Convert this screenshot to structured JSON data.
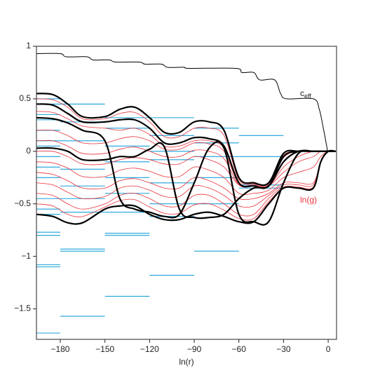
{
  "chart_data": {
    "type": "line",
    "x_label": "ln(r)",
    "annotations": {
      "ceff": {
        "text": "c",
        "sub": "eff"
      },
      "lng": "ln(g)"
    },
    "xlim": [
      -196,
      5.6
    ],
    "ylim": [
      -1.79,
      1
    ],
    "xticks": [
      {
        "value": -180,
        "label": "−180"
      },
      {
        "value": -150,
        "label": "−150"
      },
      {
        "value": -120,
        "label": "−120"
      },
      {
        "value": -90,
        "label": "−90"
      },
      {
        "value": -60,
        "label": "−60"
      },
      {
        "value": -30,
        "label": "−30"
      },
      0
    ],
    "yticks": [
      1,
      0.5,
      0,
      {
        "value": -0.5,
        "label": "−0.5"
      },
      {
        "value": -1,
        "label": "−1"
      },
      {
        "value": -1.5,
        "label": "−1.5"
      }
    ],
    "ceff": {
      "color": "#000000",
      "x": [
        -196,
        -180,
        -176,
        -162,
        -158,
        -147,
        -143,
        -127,
        -123,
        -112,
        -108,
        -97,
        -93,
        -62,
        -58,
        -50,
        -46,
        -36,
        -32,
        -28,
        -10,
        -6,
        -3,
        -1,
        0,
        5
      ],
      "values": [
        0.93,
        0.93,
        0.9,
        0.9,
        0.87,
        0.87,
        0.85,
        0.85,
        0.83,
        0.83,
        0.8,
        0.8,
        0.79,
        0.79,
        0.75,
        0.75,
        0.68,
        0.68,
        0.55,
        0.5,
        0.5,
        0.4,
        0.2,
        0.05,
        0,
        0
      ]
    },
    "x": [
      -196,
      -185,
      -175,
      -165,
      -150,
      -140,
      -130,
      -120,
      -110,
      -100,
      -90,
      -80,
      -70,
      -60,
      -50,
      -40,
      -30,
      -20,
      -10,
      -5,
      0,
      5
    ],
    "series": [
      {
        "color": "#e8323c",
        "width": 0.8,
        "values": [
          0.5,
          0.49,
          0.42,
          0.31,
          0.31,
          0.36,
          0.37,
          0.28,
          0.14,
          0.14,
          0.22,
          0.22,
          0.15,
          -0.27,
          -0.31,
          -0.31,
          -0.04,
          0,
          0,
          0,
          0,
          0
        ]
      },
      {
        "color": "#e8323c",
        "width": 0.8,
        "values": [
          0.38,
          0.37,
          0.31,
          0.24,
          0.22,
          0.2,
          0.22,
          0.16,
          0.05,
          0.05,
          0.1,
          0.1,
          0.03,
          -0.3,
          -0.32,
          -0.32,
          -0.06,
          0,
          0,
          0,
          0,
          0
        ]
      },
      {
        "color": "#e8323c",
        "width": 0.8,
        "values": [
          0.2,
          0.2,
          0.15,
          0.08,
          0.08,
          0.12,
          0.14,
          0.1,
          0.02,
          0.02,
          0.08,
          0.07,
          0,
          -0.31,
          -0.33,
          -0.33,
          -0.1,
          0,
          0,
          0,
          0,
          0
        ]
      },
      {
        "color": "#e8323c",
        "width": 0.8,
        "values": [
          0.1,
          0.1,
          0.05,
          -0.02,
          -0.02,
          0.02,
          0.04,
          0.0,
          -0.05,
          -0.05,
          0.01,
          0,
          -0.07,
          -0.32,
          -0.33,
          -0.33,
          -0.15,
          -0.05,
          0,
          0,
          0,
          0
        ]
      },
      {
        "color": "#e8323c",
        "width": 0.8,
        "values": [
          0,
          0,
          -0.05,
          -0.12,
          -0.12,
          -0.08,
          -0.06,
          -0.08,
          -0.12,
          -0.12,
          -0.05,
          -0.08,
          -0.15,
          -0.32,
          -0.33,
          -0.33,
          -0.2,
          -0.1,
          -0.05,
          0,
          0,
          0
        ]
      },
      {
        "color": "#e8323c",
        "width": 0.8,
        "values": [
          -0.1,
          -0.11,
          -0.16,
          -0.24,
          -0.24,
          -0.18,
          -0.16,
          -0.19,
          -0.24,
          -0.24,
          -0.15,
          -0.18,
          -0.25,
          -0.4,
          -0.4,
          -0.37,
          -0.25,
          -0.2,
          -0.15,
          -0.05,
          0,
          0
        ]
      },
      {
        "color": "#e8323c",
        "width": 0.8,
        "values": [
          -0.2,
          -0.22,
          -0.28,
          -0.35,
          -0.35,
          -0.28,
          -0.26,
          -0.3,
          -0.35,
          -0.35,
          -0.25,
          -0.28,
          -0.35,
          -0.45,
          -0.45,
          -0.4,
          -0.3,
          -0.3,
          -0.3,
          -0.1,
          0,
          0
        ]
      },
      {
        "color": "#e8323c",
        "width": 0.8,
        "values": [
          -0.3,
          -0.32,
          -0.39,
          -0.45,
          -0.43,
          -0.35,
          -0.33,
          -0.37,
          -0.43,
          -0.43,
          -0.33,
          -0.35,
          -0.42,
          -0.52,
          -0.52,
          -0.42,
          -0.32,
          -0.32,
          -0.32,
          -0.1,
          0,
          0
        ]
      },
      {
        "color": "#e8323c",
        "width": 0.8,
        "values": [
          -0.4,
          -0.42,
          -0.5,
          -0.55,
          -0.5,
          -0.42,
          -0.4,
          -0.45,
          -0.52,
          -0.52,
          -0.42,
          -0.42,
          -0.5,
          -0.6,
          -0.6,
          -0.45,
          -0.34,
          -0.34,
          -0.34,
          -0.1,
          0,
          0
        ]
      },
      {
        "color": "#e8323c",
        "width": 0.8,
        "values": [
          -0.5,
          -0.52,
          -0.6,
          -0.62,
          -0.53,
          -0.47,
          -0.46,
          -0.53,
          -0.59,
          -0.59,
          -0.51,
          -0.5,
          -0.56,
          -0.64,
          -0.64,
          -0.48,
          -0.35,
          -0.35,
          -0.35,
          -0.1,
          0,
          0
        ]
      },
      {
        "color": "#000000",
        "width": 2.2,
        "values": [
          0.55,
          0.54,
          0.45,
          0.33,
          0.33,
          0.4,
          0.42,
          0.32,
          0.18,
          0.18,
          0.28,
          0.28,
          0.2,
          -0.25,
          -0.3,
          -0.3,
          -0.02,
          0,
          0,
          0,
          0,
          0
        ]
      },
      {
        "color": "#000000",
        "width": 2.2,
        "values": [
          0.45,
          0.44,
          0.36,
          0.28,
          0.28,
          0.3,
          0.3,
          0.22,
          0.08,
          0.08,
          0.13,
          0.12,
          0.05,
          -0.3,
          -0.33,
          -0.33,
          -0.05,
          0,
          0,
          0,
          0,
          0
        ]
      },
      {
        "color": "#000000",
        "width": 2.2,
        "values": [
          0.32,
          0.31,
          0.27,
          0.2,
          0.1,
          -0.45,
          -0.55,
          -0.58,
          -0.62,
          -0.6,
          -0.3,
          0.03,
          0.03,
          -0.6,
          -0.67,
          -0.67,
          -0.3,
          -0.02,
          0,
          0,
          0,
          0
        ]
      },
      {
        "color": "#000000",
        "width": 2.2,
        "values": [
          0.03,
          0.03,
          0,
          -0.08,
          -0.08,
          -0.05,
          -0.05,
          0.02,
          0.04,
          -0.55,
          -0.63,
          -0.63,
          -0.6,
          -0.45,
          -0.35,
          -0.33,
          -0.1,
          0,
          0,
          0,
          0,
          0
        ]
      },
      {
        "color": "#000000",
        "width": 2.2,
        "values": [
          -0.6,
          -0.62,
          -0.68,
          -0.68,
          -0.55,
          -0.52,
          -0.52,
          -0.6,
          -0.65,
          -0.65,
          -0.6,
          -0.58,
          -0.62,
          -0.67,
          -0.67,
          -0.5,
          -0.35,
          -0.35,
          -0.35,
          -0.1,
          0,
          0
        ]
      }
    ],
    "levels": {
      "color": "#1aa0d8",
      "x1": [
        -196,
        -196,
        -196,
        -196,
        -196,
        -196,
        -196,
        -196,
        -196,
        -196,
        -196,
        -196,
        -196,
        -196,
        -196,
        -196,
        -196,
        -196,
        -180,
        -180,
        -180,
        -180,
        -180,
        -180,
        -180,
        -180,
        -180,
        -180,
        -150,
        -150,
        -150,
        -150,
        -150,
        -150,
        -150,
        -150,
        -150,
        -150,
        -120,
        -120,
        -120,
        -120,
        -120,
        -120,
        -120,
        -120,
        -90,
        -90,
        -90,
        -90,
        -90,
        -90,
        -60,
        -60,
        -60,
        -60
      ],
      "x2": [
        -180,
        -180,
        -180,
        -180,
        -180,
        -180,
        -180,
        -180,
        -180,
        -180,
        -180,
        -180,
        -180,
        -180,
        -180,
        -180,
        -180,
        -180,
        -150,
        -150,
        -150,
        -150,
        -150,
        -150,
        -150,
        -150,
        -150,
        -150,
        -120,
        -120,
        -120,
        -120,
        -120,
        -120,
        -120,
        -120,
        -120,
        -120,
        -90,
        -90,
        -90,
        -90,
        -90,
        -90,
        -90,
        -90,
        -60,
        -60,
        -60,
        -60,
        -60,
        -60,
        -30,
        -30,
        -30,
        -30
      ],
      "y": [
        0.5,
        0.45,
        0.35,
        0.3,
        0.2,
        0.1,
        0.05,
        -0.05,
        -0.15,
        -0.25,
        -0.45,
        -0.55,
        -0.6,
        -0.77,
        -0.8,
        -1.08,
        -1.1,
        -1.73,
        0.45,
        0.28,
        0.1,
        -0.17,
        -0.33,
        -0.45,
        -0.58,
        -0.93,
        -0.95,
        -1.57,
        0.32,
        0.22,
        0.05,
        -0.1,
        -0.25,
        -0.4,
        -0.58,
        -0.78,
        -0.8,
        -1.38,
        0.32,
        0.15,
        0,
        -0.08,
        -0.3,
        -0.5,
        -0.62,
        -1.18,
        0.22,
        0.08,
        -0.05,
        -0.25,
        -0.5,
        -0.95,
        0.15,
        -0.05,
        -0.32,
        -0.35
      ]
    }
  }
}
